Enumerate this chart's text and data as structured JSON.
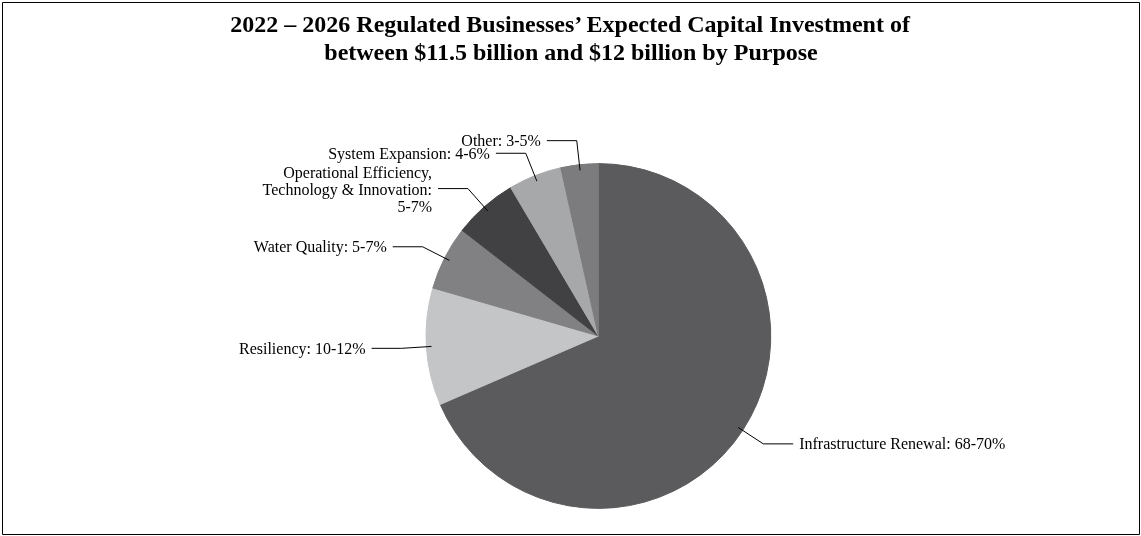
{
  "chart_data": {
    "type": "pie",
    "title": "2022 – 2026 Regulated Businesses’ Expected Capital Investment of between $11.5 billion and $12 billion by Purpose",
    "categories": [
      "Infrastructure Renewal: 68-70%",
      "Resiliency: 10-12%",
      "Water Quality: 5-7%",
      "Operational Efficiency, Technology & Innovation: 5-7%",
      "System Expansion: 4-6%",
      "Other: 3-5%"
    ],
    "values": [
      68.5,
      11,
      6,
      6,
      5,
      3.5
    ],
    "colors": [
      "#5b5b5d",
      "#c4c5c7",
      "#818184",
      "#414143",
      "#a7a8aa",
      "#7c7c7e"
    ]
  }
}
